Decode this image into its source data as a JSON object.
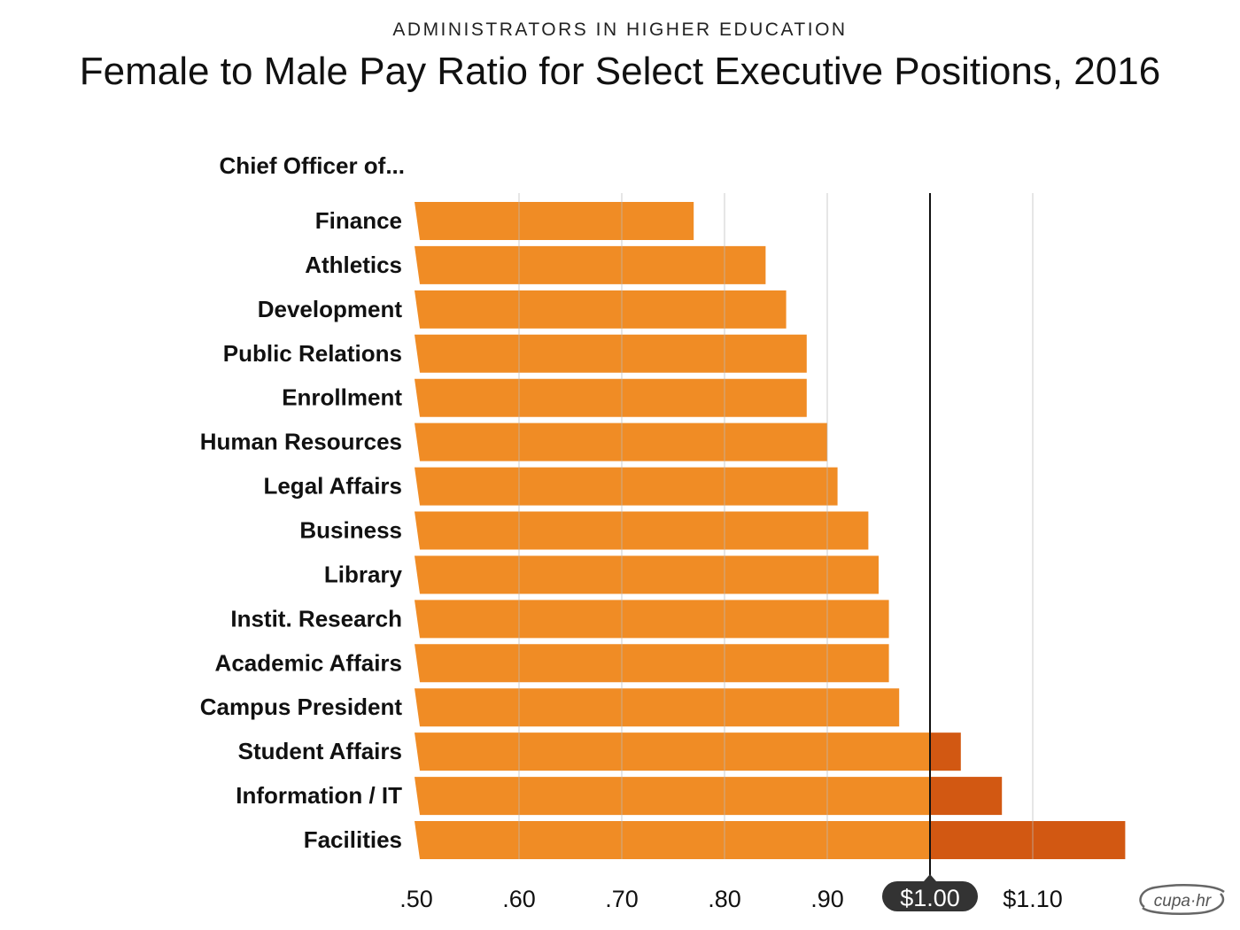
{
  "supertitle": "ADMINISTRATORS IN HIGHER EDUCATION",
  "title": "Female to Male Pay Ratio for Select Executive Positions, 2016",
  "logo_text": "cupa·hr",
  "colors": {
    "bar": "#f08c25",
    "bar_above_parity": "#d25812",
    "grid": "#b9b9b9",
    "reference_line": "#111111",
    "reference_badge": "#333333"
  },
  "chart_data": {
    "type": "bar",
    "orientation": "horizontal",
    "category_heading": "Chief Officer of...",
    "categories": [
      "Finance",
      "Athletics",
      "Development",
      "Public Relations",
      "Enrollment",
      "Human Resources",
      "Legal Affairs",
      "Business",
      "Library",
      "Instit. Research",
      "Academic Affairs",
      "Campus President",
      "Student Affairs",
      "Information / IT",
      "Facilities"
    ],
    "values": [
      0.77,
      0.84,
      0.86,
      0.88,
      0.88,
      0.9,
      0.91,
      0.94,
      0.95,
      0.96,
      0.96,
      0.97,
      1.03,
      1.07,
      1.19
    ],
    "xlim": [
      0.5,
      1.19
    ],
    "ticks": [
      0.5,
      0.6,
      0.7,
      0.8,
      0.9,
      1.0,
      1.1
    ],
    "tick_labels": [
      ".50",
      ".60",
      ".70",
      ".80",
      ".90",
      "$1.00",
      "$1.10"
    ],
    "reference_line": {
      "value": 1.0,
      "label": "$1.00"
    },
    "grid": true,
    "legend": "none"
  }
}
